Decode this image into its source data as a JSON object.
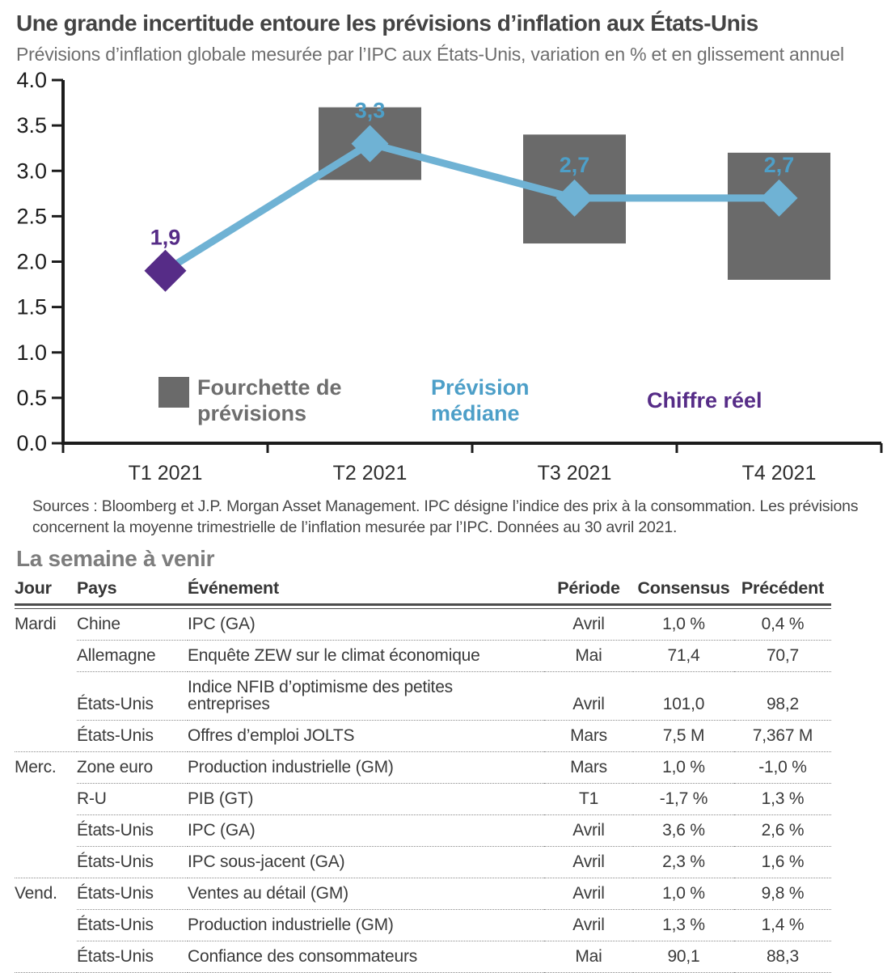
{
  "header": {
    "title": "Une grande incertitude entoure les prévisions d’inflation aux États-Unis",
    "subtitle": "Prévisions d’inflation globale mesurée par l’IPC aux États-Unis, variation en % et en glissement annuel"
  },
  "chart_data": {
    "type": "line",
    "title": "Prévisions d’inflation globale mesurée par l’IPC aux États-Unis",
    "categories": [
      "T1 2021",
      "T2 2021",
      "T3 2021",
      "T4 2021"
    ],
    "series": [
      {
        "name": "Prévision médiane",
        "values": [
          1.9,
          3.3,
          2.7,
          2.7
        ]
      }
    ],
    "point_labels": [
      "1,9",
      "3,3",
      "2,7",
      "2,7"
    ],
    "point_is_actual": [
      true,
      false,
      false,
      false
    ],
    "forecast_ranges": [
      null,
      [
        2.9,
        3.7
      ],
      [
        2.2,
        3.4
      ],
      [
        1.8,
        3.2
      ]
    ],
    "ylim": [
      0,
      4
    ],
    "ytick_labels": [
      "0.0",
      "0.5",
      "1.0",
      "1.5",
      "2.0",
      "2.5",
      "3.0",
      "3.5",
      "4.0"
    ],
    "grid": false,
    "legend_position": "bottom-inside",
    "legend": [
      {
        "lines": [
          "Fourchette de",
          "prévisions"
        ],
        "type": "box",
        "color": "#6a6a6a",
        "text_color": "#6e6e6e"
      },
      {
        "lines": [
          "Prévision",
          "médiane"
        ],
        "type": "text",
        "color": "#4d9fc8",
        "text_color": "#4d9fc8"
      },
      {
        "lines": [
          "Chiffre réel"
        ],
        "type": "text",
        "color": "#562c87",
        "text_color": "#562c87"
      }
    ],
    "colors": {
      "median_line": "#6fb2d4",
      "median_label": "#4d9fc8",
      "actual": "#562c87",
      "range_box": "#6a6a6a",
      "axis": "#1c1c1c"
    }
  },
  "sources": "Sources : Bloomberg et J.P. Morgan Asset Management. IPC désigne l’indice des prix à la consommation. Les prévisions concernent la moyenne trimestrielle de l’inflation mesurée par l’IPC. Données au 30 avril 2021.",
  "week_ahead": {
    "heading": "La semaine à venir",
    "columns": [
      "Jour",
      "Pays",
      "Événement",
      "Période",
      "Consensus",
      "Précédent"
    ],
    "rows": [
      {
        "day": "Mardi",
        "country": "Chine",
        "event": "IPC (GA)",
        "period": "Avril",
        "consensus": "1,0 %",
        "previous": "0,4 %"
      },
      {
        "day": "",
        "country": "Allemagne",
        "event": "Enquête ZEW sur le climat économique",
        "period": "Mai",
        "consensus": "71,4",
        "previous": "70,7"
      },
      {
        "day": "",
        "country": "États-Unis",
        "event": "Indice NFIB d’optimisme des petites\nentreprises",
        "period": "Avril",
        "consensus": "101,0",
        "previous": "98,2"
      },
      {
        "day": "",
        "country": "États-Unis",
        "event": "Offres d’emploi JOLTS",
        "period": "Mars",
        "consensus": "7,5 M",
        "previous": "7,367 M",
        "group_end": true
      },
      {
        "day": "Merc.",
        "country": "Zone euro",
        "event": "Production industrielle (GM)",
        "period": "Mars",
        "consensus": "1,0 %",
        "previous": "-1,0 %"
      },
      {
        "day": "",
        "country": "R-U",
        "event": "PIB (GT)",
        "period": "T1",
        "consensus": "-1,7 %",
        "previous": "1,3 %"
      },
      {
        "day": "",
        "country": "États-Unis",
        "event": "IPC (GA)",
        "period": "Avril",
        "consensus": "3,6 %",
        "previous": "2,6 %"
      },
      {
        "day": "",
        "country": "États-Unis",
        "event": "IPC sous-jacent (GA)",
        "period": "Avril",
        "consensus": "2,3 %",
        "previous": "1,6 %",
        "group_end": true
      },
      {
        "day": "Vend.",
        "country": "États-Unis",
        "event": "Ventes au détail (GM)",
        "period": "Avril",
        "consensus": "1,0 %",
        "previous": "9,8 %"
      },
      {
        "day": "",
        "country": "États-Unis",
        "event": "Production industrielle (GM)",
        "period": "Avril",
        "consensus": "1,3 %",
        "previous": "1,4 %"
      },
      {
        "day": "",
        "country": "États-Unis",
        "event": "Confiance des consommateurs",
        "period": "Mai",
        "consensus": "90,1",
        "previous": "88,3",
        "group_end": true
      }
    ]
  }
}
